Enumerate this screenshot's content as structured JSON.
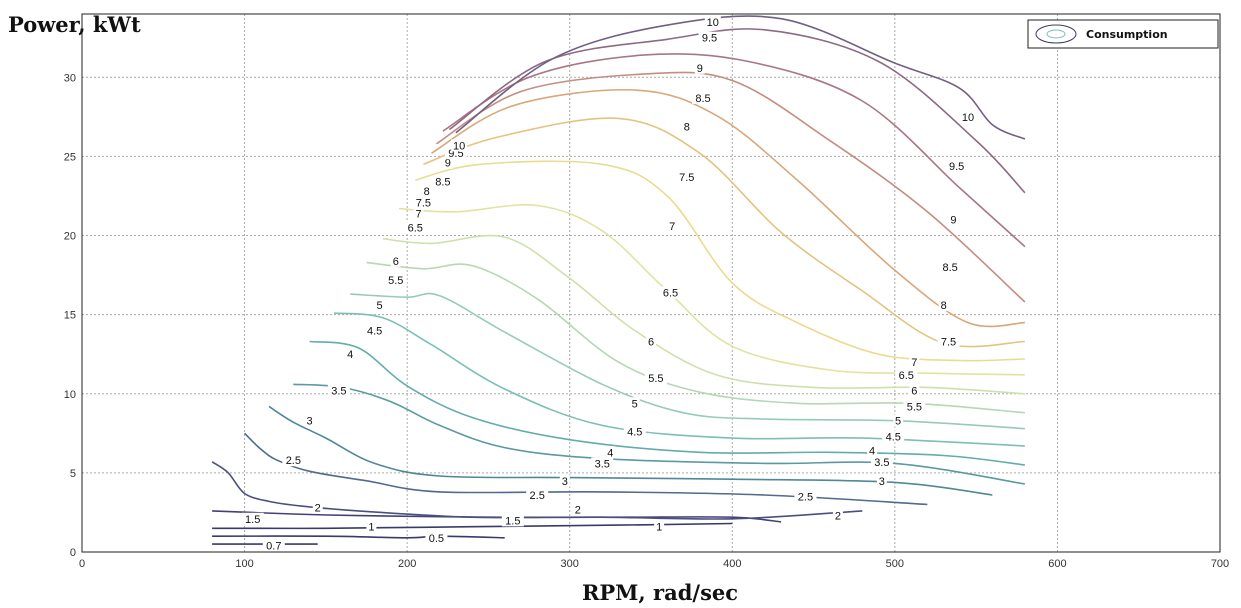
{
  "chart_data": {
    "type": "contour",
    "xlabel": "RPM, rad/sec",
    "ylabel": "Power, kWt",
    "xlim": [
      0,
      700
    ],
    "ylim": [
      0,
      34
    ],
    "x_ticks": [
      0,
      100,
      200,
      300,
      400,
      500,
      600,
      700
    ],
    "y_ticks": [
      0,
      5,
      10,
      15,
      20,
      25,
      30
    ],
    "grid": true,
    "legend": {
      "label": "Consumption",
      "placement": "top-right"
    },
    "series": [
      {
        "level": "0.7",
        "color": "#3a3a6a",
        "points": [
          [
            80,
            0.5
          ],
          [
            100,
            0.5
          ],
          [
            120,
            0.5
          ],
          [
            140,
            0.5
          ],
          [
            145,
            0.5
          ]
        ],
        "labels": [
          [
            118,
            0.4
          ]
        ]
      },
      {
        "level": "0.5",
        "color": "#3a3a6a",
        "points": [
          [
            80,
            1.0
          ],
          [
            150,
            1.0
          ],
          [
            200,
            0.9
          ],
          [
            220,
            1.0
          ],
          [
            260,
            0.9
          ]
        ],
        "labels": [
          [
            218,
            0.9
          ]
        ]
      },
      {
        "level": "1",
        "color": "#3a3a6a",
        "points": [
          [
            80,
            1.5
          ],
          [
            150,
            1.5
          ],
          [
            240,
            1.6
          ],
          [
            330,
            1.7
          ],
          [
            400,
            1.8
          ]
        ],
        "labels": [
          [
            178,
            1.6
          ],
          [
            355,
            1.6
          ]
        ]
      },
      {
        "level": "1.5",
        "color": "#453f78",
        "points": [
          [
            80,
            2.6
          ],
          [
            130,
            2.4
          ],
          [
            170,
            2.3
          ],
          [
            250,
            2.2
          ],
          [
            330,
            2.2
          ],
          [
            400,
            2.2
          ],
          [
            430,
            1.9
          ]
        ],
        "labels": [
          [
            105,
            2.1
          ],
          [
            265,
            2.0
          ]
        ]
      },
      {
        "level": "2",
        "color": "#4a4f7f",
        "points": [
          [
            80,
            5.7
          ],
          [
            90,
            5.0
          ],
          [
            100,
            3.7
          ],
          [
            115,
            3.2
          ],
          [
            135,
            2.9
          ],
          [
            170,
            2.6
          ],
          [
            240,
            2.2
          ],
          [
            320,
            2.2
          ],
          [
            400,
            2.1
          ],
          [
            480,
            2.6
          ]
        ],
        "labels": [
          [
            145,
            2.8
          ],
          [
            305,
            2.7
          ],
          [
            465,
            2.3
          ]
        ]
      },
      {
        "level": "2.5",
        "color": "#4f6b8d",
        "points": [
          [
            100,
            7.5
          ],
          [
            110,
            6.5
          ],
          [
            120,
            5.8
          ],
          [
            140,
            5.1
          ],
          [
            175,
            4.5
          ],
          [
            220,
            3.8
          ],
          [
            320,
            3.8
          ],
          [
            420,
            3.6
          ],
          [
            520,
            3.0
          ]
        ],
        "labels": [
          [
            130,
            5.8
          ],
          [
            280,
            3.6
          ],
          [
            445,
            3.5
          ]
        ]
      },
      {
        "level": "3",
        "color": "#4f8896",
        "points": [
          [
            115,
            9.2
          ],
          [
            130,
            8.2
          ],
          [
            150,
            7.2
          ],
          [
            180,
            5.6
          ],
          [
            220,
            4.8
          ],
          [
            300,
            4.7
          ],
          [
            400,
            4.6
          ],
          [
            500,
            4.4
          ],
          [
            560,
            3.6
          ]
        ],
        "labels": [
          [
            140,
            8.3
          ],
          [
            297,
            4.5
          ],
          [
            492,
            4.5
          ]
        ]
      },
      {
        "level": "3.5",
        "color": "#5a9aa0",
        "points": [
          [
            130,
            10.6
          ],
          [
            160,
            10.4
          ],
          [
            190,
            9.5
          ],
          [
            220,
            8.0
          ],
          [
            260,
            6.6
          ],
          [
            320,
            5.9
          ],
          [
            420,
            5.6
          ],
          [
            500,
            5.6
          ],
          [
            580,
            4.3
          ]
        ],
        "labels": [
          [
            158,
            10.2
          ],
          [
            320,
            5.6
          ],
          [
            492,
            5.7
          ]
        ]
      },
      {
        "level": "4",
        "color": "#62acaa",
        "points": [
          [
            140,
            13.3
          ],
          [
            170,
            12.9
          ],
          [
            200,
            10.5
          ],
          [
            240,
            8.5
          ],
          [
            300,
            7.1
          ],
          [
            380,
            6.3
          ],
          [
            460,
            6.3
          ],
          [
            530,
            6.1
          ],
          [
            580,
            5.5
          ]
        ],
        "labels": [
          [
            165,
            12.5
          ],
          [
            325,
            6.3
          ],
          [
            486,
            6.4
          ]
        ]
      },
      {
        "level": "4.5",
        "color": "#7cbfb5",
        "points": [
          [
            155,
            15.1
          ],
          [
            185,
            14.8
          ],
          [
            215,
            13.1
          ],
          [
            260,
            10.3
          ],
          [
            320,
            8.0
          ],
          [
            400,
            7.2
          ],
          [
            480,
            7.2
          ],
          [
            580,
            6.7
          ]
        ],
        "labels": [
          [
            180,
            14.0
          ],
          [
            340,
            7.6
          ],
          [
            499,
            7.3
          ]
        ]
      },
      {
        "level": "5",
        "color": "#97cbb9",
        "points": [
          [
            165,
            16.3
          ],
          [
            200,
            16.1
          ],
          [
            220,
            16.2
          ],
          [
            260,
            13.9
          ],
          [
            320,
            10.6
          ],
          [
            370,
            8.8
          ],
          [
            420,
            8.4
          ],
          [
            500,
            8.3
          ],
          [
            580,
            7.8
          ]
        ],
        "labels": [
          [
            183,
            15.6
          ],
          [
            340,
            9.4
          ],
          [
            502,
            8.3
          ]
        ]
      },
      {
        "level": "5.5",
        "color": "#b5d7b5",
        "points": [
          [
            175,
            18.3
          ],
          [
            210,
            17.9
          ],
          [
            240,
            18.1
          ],
          [
            280,
            16.0
          ],
          [
            330,
            12.0
          ],
          [
            380,
            10.1
          ],
          [
            440,
            9.4
          ],
          [
            510,
            9.4
          ],
          [
            580,
            8.8
          ]
        ],
        "labels": [
          [
            193,
            17.2
          ],
          [
            353,
            11.0
          ],
          [
            512,
            9.2
          ]
        ]
      },
      {
        "level": "6",
        "color": "#cfe0ac",
        "points": [
          [
            185,
            19.8
          ],
          [
            215,
            19.5
          ],
          [
            260,
            19.9
          ],
          [
            300,
            17.3
          ],
          [
            340,
            14.0
          ],
          [
            390,
            11.2
          ],
          [
            450,
            10.4
          ],
          [
            520,
            10.4
          ],
          [
            580,
            10.0
          ]
        ],
        "labels": [
          [
            193,
            18.4
          ],
          [
            350,
            13.3
          ],
          [
            512,
            10.2
          ]
        ]
      },
      {
        "level": "6.5",
        "color": "#e1e39f",
        "points": [
          [
            195,
            21.7
          ],
          [
            230,
            21.5
          ],
          [
            280,
            21.9
          ],
          [
            320,
            20.3
          ],
          [
            360,
            16.5
          ],
          [
            400,
            13.0
          ],
          [
            460,
            11.5
          ],
          [
            520,
            11.3
          ],
          [
            580,
            11.2
          ]
        ],
        "labels": [
          [
            205,
            20.5
          ],
          [
            362,
            16.4
          ],
          [
            507,
            11.2
          ]
        ]
      },
      {
        "level": "7",
        "color": "#eadc8f",
        "points": [
          [
            205,
            23.5
          ],
          [
            245,
            24.5
          ],
          [
            320,
            24.5
          ],
          [
            360,
            22.5
          ],
          [
            400,
            17.0
          ],
          [
            440,
            14.5
          ],
          [
            490,
            12.5
          ],
          [
            540,
            12.1
          ],
          [
            580,
            12.2
          ]
        ],
        "labels": [
          [
            207,
            21.4
          ],
          [
            363,
            20.6
          ],
          [
            512,
            12.0
          ]
        ]
      },
      {
        "level": "7.5",
        "color": "#e4c37e",
        "points": [
          [
            210,
            24.5
          ],
          [
            255,
            26.2
          ],
          [
            330,
            27.4
          ],
          [
            380,
            25.2
          ],
          [
            430,
            20.2
          ],
          [
            480,
            16.5
          ],
          [
            530,
            13.2
          ],
          [
            580,
            13.3
          ]
        ],
        "labels": [
          [
            210,
            22.1
          ],
          [
            372,
            23.7
          ],
          [
            533,
            13.3
          ]
        ]
      },
      {
        "level": "8",
        "color": "#d9a778",
        "points": [
          [
            215,
            25.2
          ],
          [
            265,
            28.2
          ],
          [
            340,
            29.2
          ],
          [
            390,
            27.6
          ],
          [
            440,
            23.5
          ],
          [
            500,
            17.8
          ],
          [
            545,
            14.5
          ],
          [
            580,
            14.5
          ]
        ],
        "labels": [
          [
            212,
            22.8
          ],
          [
            372,
            26.9
          ],
          [
            530,
            15.6
          ]
        ]
      },
      {
        "level": "8.5",
        "color": "#c48d80",
        "points": [
          [
            218,
            25.8
          ],
          [
            270,
            29.1
          ],
          [
            345,
            30.2
          ],
          [
            400,
            29.8
          ],
          [
            460,
            26.0
          ],
          [
            520,
            21.5
          ],
          [
            580,
            15.8
          ]
        ],
        "labels": [
          [
            222,
            23.4
          ],
          [
            382,
            28.7
          ],
          [
            534,
            18.0
          ]
        ]
      },
      {
        "level": "9",
        "color": "#a97782",
        "points": [
          [
            222,
            26.6
          ],
          [
            275,
            30.0
          ],
          [
            345,
            31.4
          ],
          [
            410,
            31.0
          ],
          [
            480,
            28.5
          ],
          [
            540,
            23.0
          ],
          [
            580,
            19.3
          ]
        ],
        "labels": [
          [
            225,
            24.6
          ],
          [
            380,
            30.6
          ],
          [
            536,
            21.0
          ]
        ]
      },
      {
        "level": "9.5",
        "color": "#8c6a84",
        "points": [
          [
            226,
            26.7
          ],
          [
            285,
            31.0
          ],
          [
            360,
            32.4
          ],
          [
            420,
            33.0
          ],
          [
            490,
            31.0
          ],
          [
            550,
            26.0
          ],
          [
            580,
            22.7
          ]
        ],
        "labels": [
          [
            230,
            25.2
          ],
          [
            386,
            32.5
          ],
          [
            538,
            24.4
          ]
        ]
      },
      {
        "level": "10",
        "color": "#735f83",
        "points": [
          [
            230,
            26.5
          ],
          [
            290,
            31.2
          ],
          [
            360,
            33.3
          ],
          [
            430,
            33.7
          ],
          [
            500,
            30.9
          ],
          [
            540,
            29.3
          ],
          [
            560,
            27.0
          ],
          [
            580,
            26.1
          ]
        ],
        "labels": [
          [
            232,
            25.7
          ],
          [
            388,
            33.5
          ],
          [
            545,
            27.5
          ]
        ]
      }
    ]
  }
}
